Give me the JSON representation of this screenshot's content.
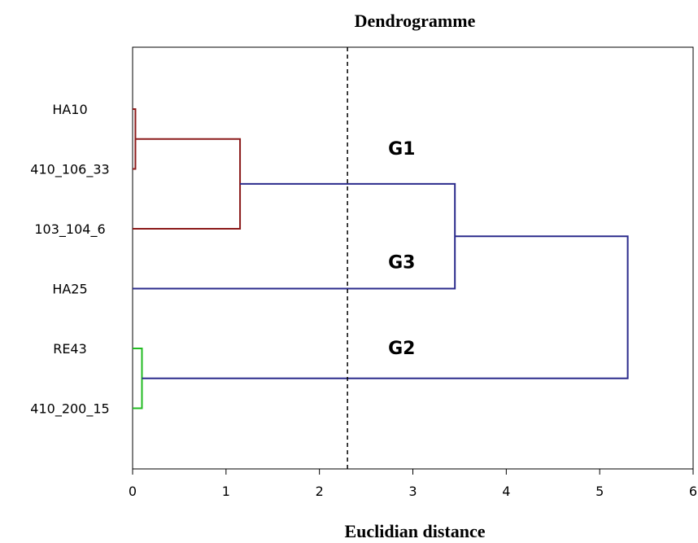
{
  "chart_data": {
    "type": "dendrogram",
    "title": "Dendrogramme",
    "xlabel": "Euclidian distance",
    "ylabel": "",
    "xlim": [
      0,
      6
    ],
    "xticks": [
      "0",
      "1",
      "2",
      "3",
      "4",
      "5",
      "6"
    ],
    "grid": false,
    "leaves": [
      "HA10",
      "410_106_33",
      "103_104_6",
      "HA25",
      "RE43",
      "410_200_15"
    ],
    "cut_line": {
      "distance": 2.3,
      "style": "dashed"
    },
    "links": [
      {
        "id": "c1",
        "children": [
          "HA10",
          "410_106_33"
        ],
        "height": 0.03,
        "color": "#8b1a1a"
      },
      {
        "id": "c2",
        "children": [
          "c1",
          "103_104_6"
        ],
        "height": 1.15,
        "color": "#8b1a1a"
      },
      {
        "id": "c3",
        "children": [
          "RE43",
          "410_200_15"
        ],
        "height": 0.1,
        "color": "#22bb22"
      },
      {
        "id": "c4",
        "children": [
          "c2",
          "HA25"
        ],
        "height": 3.45,
        "color": "#2b2b8c"
      },
      {
        "id": "c5",
        "children": [
          "c4",
          "c3"
        ],
        "height": 5.3,
        "color": "#2b2b8c"
      }
    ],
    "group_labels": [
      {
        "text": "G1",
        "near": "c2"
      },
      {
        "text": "G3",
        "near": "HA25"
      },
      {
        "text": "G2",
        "near": "c3"
      }
    ],
    "colors": {
      "cluster_brown": "#8b1a1a",
      "cluster_green": "#22bb22",
      "link_blue": "#2b2b8c",
      "axis": "#000000"
    }
  }
}
